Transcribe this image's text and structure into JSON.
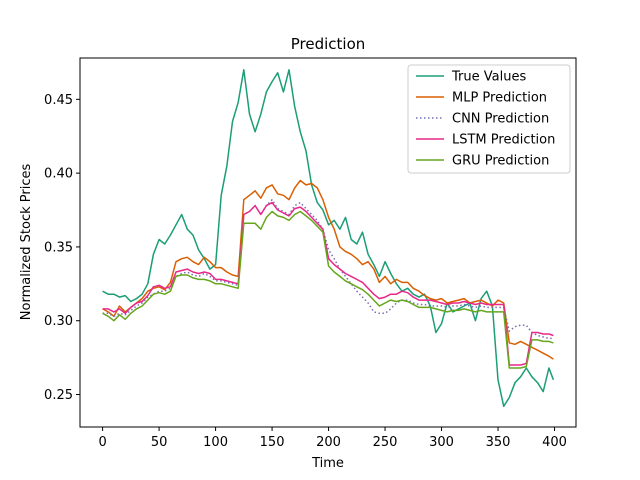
{
  "chart_data": {
    "type": "line",
    "title": "Prediction",
    "xlabel": "Time",
    "ylabel": "Normalized Stock Prices",
    "xlim": [
      -20,
      419
    ],
    "ylim": [
      0.228,
      0.478
    ],
    "xticks": [
      0,
      50,
      100,
      150,
      200,
      250,
      300,
      350,
      400
    ],
    "yticks": [
      0.25,
      0.3,
      0.35,
      0.4,
      0.45
    ],
    "ytick_labels": [
      "0.25",
      "0.30",
      "0.35",
      "0.40",
      "0.45"
    ],
    "grid": false,
    "legend_position": "top-right",
    "series": [
      {
        "name": "True Values",
        "color": "#1b9e77",
        "dash": "solid",
        "x": [
          0,
          5,
          10,
          15,
          20,
          25,
          30,
          35,
          40,
          45,
          50,
          55,
          60,
          65,
          70,
          75,
          80,
          85,
          90,
          95,
          100,
          105,
          110,
          115,
          120,
          125,
          130,
          135,
          140,
          145,
          150,
          155,
          160,
          165,
          170,
          175,
          180,
          185,
          190,
          195,
          200,
          205,
          210,
          215,
          220,
          225,
          230,
          235,
          240,
          245,
          250,
          255,
          260,
          265,
          270,
          275,
          280,
          285,
          290,
          295,
          300,
          305,
          310,
          315,
          320,
          325,
          330,
          335,
          340,
          345,
          350,
          355,
          360,
          365,
          370,
          375,
          380,
          385,
          390,
          395,
          399
        ],
        "y": [
          0.32,
          0.318,
          0.318,
          0.316,
          0.317,
          0.313,
          0.315,
          0.318,
          0.325,
          0.345,
          0.355,
          0.352,
          0.358,
          0.365,
          0.372,
          0.362,
          0.358,
          0.348,
          0.342,
          0.335,
          0.338,
          0.385,
          0.405,
          0.435,
          0.448,
          0.47,
          0.44,
          0.428,
          0.44,
          0.455,
          0.462,
          0.468,
          0.455,
          0.47,
          0.445,
          0.428,
          0.415,
          0.392,
          0.38,
          0.375,
          0.365,
          0.368,
          0.362,
          0.37,
          0.355,
          0.352,
          0.36,
          0.345,
          0.338,
          0.33,
          0.34,
          0.332,
          0.325,
          0.32,
          0.322,
          0.318,
          0.316,
          0.318,
          0.31,
          0.292,
          0.298,
          0.312,
          0.306,
          0.308,
          0.31,
          0.312,
          0.3,
          0.315,
          0.32,
          0.31,
          0.26,
          0.242,
          0.248,
          0.258,
          0.262,
          0.268,
          0.262,
          0.258,
          0.252,
          0.268,
          0.26
        ]
      },
      {
        "name": "MLP Prediction",
        "color": "#d95f02",
        "dash": "solid",
        "x": [
          0,
          5,
          10,
          15,
          20,
          25,
          30,
          35,
          40,
          45,
          50,
          55,
          60,
          65,
          70,
          75,
          80,
          85,
          90,
          95,
          100,
          105,
          110,
          115,
          120,
          125,
          130,
          135,
          140,
          145,
          150,
          155,
          160,
          165,
          170,
          175,
          180,
          185,
          190,
          195,
          200,
          205,
          210,
          215,
          220,
          225,
          230,
          235,
          240,
          245,
          250,
          255,
          260,
          265,
          270,
          275,
          280,
          285,
          290,
          295,
          300,
          305,
          310,
          315,
          320,
          325,
          330,
          335,
          340,
          345,
          350,
          355,
          360,
          365,
          370,
          375,
          380,
          385,
          390,
          395,
          399
        ],
        "y": [
          0.308,
          0.306,
          0.303,
          0.31,
          0.306,
          0.309,
          0.312,
          0.315,
          0.32,
          0.322,
          0.323,
          0.321,
          0.326,
          0.34,
          0.342,
          0.343,
          0.34,
          0.338,
          0.343,
          0.34,
          0.336,
          0.336,
          0.333,
          0.331,
          0.33,
          0.382,
          0.385,
          0.388,
          0.383,
          0.39,
          0.392,
          0.386,
          0.385,
          0.382,
          0.39,
          0.395,
          0.392,
          0.393,
          0.39,
          0.382,
          0.37,
          0.362,
          0.35,
          0.347,
          0.345,
          0.342,
          0.338,
          0.34,
          0.335,
          0.326,
          0.33,
          0.325,
          0.328,
          0.326,
          0.326,
          0.322,
          0.32,
          0.317,
          0.315,
          0.314,
          0.315,
          0.312,
          0.313,
          0.314,
          0.315,
          0.312,
          0.313,
          0.314,
          0.312,
          0.31,
          0.314,
          0.312,
          0.285,
          0.284,
          0.286,
          0.284,
          0.282,
          0.28,
          0.278,
          0.276,
          0.274
        ]
      },
      {
        "name": "CNN Prediction",
        "color": "#7570b3",
        "dash": "dotted",
        "x": [
          0,
          5,
          10,
          15,
          20,
          25,
          30,
          35,
          40,
          45,
          50,
          55,
          60,
          65,
          70,
          75,
          80,
          85,
          90,
          95,
          100,
          105,
          110,
          115,
          120,
          125,
          130,
          135,
          140,
          145,
          150,
          155,
          160,
          165,
          170,
          175,
          180,
          185,
          190,
          195,
          200,
          205,
          210,
          215,
          220,
          225,
          230,
          235,
          240,
          245,
          250,
          255,
          260,
          265,
          270,
          275,
          280,
          285,
          290,
          295,
          300,
          305,
          310,
          315,
          320,
          325,
          330,
          335,
          340,
          345,
          350,
          355,
          360,
          365,
          370,
          375,
          380,
          385,
          390,
          395,
          399
        ],
        "y": [
          0.305,
          0.305,
          0.303,
          0.305,
          0.304,
          0.307,
          0.31,
          0.312,
          0.316,
          0.318,
          0.32,
          0.32,
          0.322,
          0.33,
          0.332,
          0.333,
          0.331,
          0.33,
          0.332,
          0.33,
          0.327,
          0.327,
          0.326,
          0.325,
          0.324,
          0.372,
          0.374,
          0.378,
          0.372,
          0.378,
          0.382,
          0.376,
          0.374,
          0.372,
          0.378,
          0.38,
          0.376,
          0.372,
          0.368,
          0.362,
          0.348,
          0.342,
          0.335,
          0.33,
          0.325,
          0.32,
          0.316,
          0.312,
          0.306,
          0.305,
          0.305,
          0.308,
          0.312,
          0.314,
          0.314,
          0.312,
          0.311,
          0.311,
          0.31,
          0.31,
          0.31,
          0.309,
          0.31,
          0.31,
          0.311,
          0.31,
          0.309,
          0.31,
          0.309,
          0.309,
          0.309,
          0.309,
          0.293,
          0.296,
          0.297,
          0.297,
          0.292,
          0.29,
          0.289,
          0.288,
          0.288
        ]
      },
      {
        "name": "LSTM Prediction",
        "color": "#e7298a",
        "dash": "solid",
        "x": [
          0,
          5,
          10,
          15,
          20,
          25,
          30,
          35,
          40,
          45,
          50,
          55,
          60,
          65,
          70,
          75,
          80,
          85,
          90,
          95,
          100,
          105,
          110,
          115,
          120,
          125,
          130,
          135,
          140,
          145,
          150,
          155,
          160,
          165,
          170,
          175,
          180,
          185,
          190,
          195,
          200,
          205,
          210,
          215,
          220,
          225,
          230,
          235,
          240,
          245,
          250,
          255,
          260,
          265,
          270,
          275,
          280,
          285,
          290,
          295,
          300,
          305,
          310,
          315,
          320,
          325,
          330,
          335,
          340,
          345,
          350,
          355,
          360,
          365,
          370,
          375,
          380,
          385,
          390,
          395,
          399
        ],
        "y": [
          0.308,
          0.308,
          0.306,
          0.308,
          0.305,
          0.309,
          0.312,
          0.313,
          0.317,
          0.323,
          0.324,
          0.322,
          0.323,
          0.333,
          0.334,
          0.335,
          0.333,
          0.332,
          0.333,
          0.332,
          0.328,
          0.328,
          0.327,
          0.326,
          0.325,
          0.372,
          0.374,
          0.378,
          0.372,
          0.378,
          0.38,
          0.375,
          0.373,
          0.371,
          0.376,
          0.377,
          0.374,
          0.37,
          0.366,
          0.362,
          0.342,
          0.338,
          0.335,
          0.332,
          0.33,
          0.328,
          0.326,
          0.322,
          0.318,
          0.315,
          0.316,
          0.318,
          0.318,
          0.32,
          0.319,
          0.316,
          0.314,
          0.314,
          0.314,
          0.313,
          0.312,
          0.311,
          0.312,
          0.312,
          0.313,
          0.312,
          0.311,
          0.312,
          0.311,
          0.311,
          0.311,
          0.311,
          0.27,
          0.27,
          0.27,
          0.271,
          0.292,
          0.292,
          0.291,
          0.291,
          0.29
        ]
      },
      {
        "name": "GRU Prediction",
        "color": "#66a61e",
        "dash": "solid",
        "x": [
          0,
          5,
          10,
          15,
          20,
          25,
          30,
          35,
          40,
          45,
          50,
          55,
          60,
          65,
          70,
          75,
          80,
          85,
          90,
          95,
          100,
          105,
          110,
          115,
          120,
          125,
          130,
          135,
          140,
          145,
          150,
          155,
          160,
          165,
          170,
          175,
          180,
          185,
          190,
          195,
          200,
          205,
          210,
          215,
          220,
          225,
          230,
          235,
          240,
          245,
          250,
          255,
          260,
          265,
          270,
          275,
          280,
          285,
          290,
          295,
          300,
          305,
          310,
          315,
          320,
          325,
          330,
          335,
          340,
          345,
          350,
          355,
          360,
          365,
          370,
          375,
          380,
          385,
          390,
          395,
          399
        ],
        "y": [
          0.305,
          0.303,
          0.3,
          0.304,
          0.301,
          0.305,
          0.308,
          0.31,
          0.314,
          0.318,
          0.319,
          0.318,
          0.32,
          0.33,
          0.331,
          0.331,
          0.329,
          0.328,
          0.328,
          0.327,
          0.325,
          0.325,
          0.324,
          0.323,
          0.322,
          0.366,
          0.366,
          0.366,
          0.362,
          0.37,
          0.374,
          0.371,
          0.37,
          0.368,
          0.372,
          0.374,
          0.371,
          0.368,
          0.364,
          0.36,
          0.337,
          0.333,
          0.33,
          0.327,
          0.325,
          0.323,
          0.321,
          0.318,
          0.314,
          0.31,
          0.312,
          0.314,
          0.313,
          0.314,
          0.313,
          0.311,
          0.309,
          0.309,
          0.309,
          0.308,
          0.307,
          0.306,
          0.307,
          0.307,
          0.308,
          0.307,
          0.306,
          0.307,
          0.306,
          0.306,
          0.306,
          0.306,
          0.268,
          0.268,
          0.268,
          0.269,
          0.287,
          0.287,
          0.286,
          0.286,
          0.285
        ]
      }
    ]
  }
}
